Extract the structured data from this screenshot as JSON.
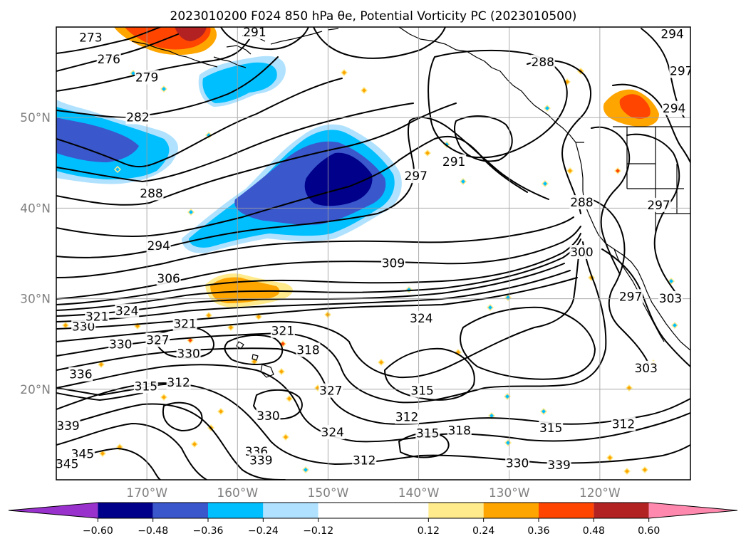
{
  "chart_data": {
    "type": "contour-map",
    "title": "2023010200 F024 850 hPa θe, Potential Vorticity PC (2023010500)",
    "map": {
      "lon_range": [
        -180,
        -110
      ],
      "lat_range": [
        10,
        60
      ],
      "lat_ticks": [
        {
          "value": 20,
          "label": "20°N"
        },
        {
          "value": 30,
          "label": "30°N"
        },
        {
          "value": 40,
          "label": "40°N"
        },
        {
          "value": 50,
          "label": "50°N"
        }
      ],
      "lon_ticks": [
        {
          "value": -170,
          "label": "170°W"
        },
        {
          "value": -160,
          "label": "160°W"
        },
        {
          "value": -150,
          "label": "150°W"
        },
        {
          "value": -140,
          "label": "140°W"
        },
        {
          "value": -130,
          "label": "130°W"
        },
        {
          "value": -120,
          "label": "120°W"
        }
      ],
      "grid": true
    },
    "colorbar": {
      "bounds": [
        -0.72,
        -0.6,
        -0.48,
        -0.36,
        -0.24,
        -0.12,
        0.12,
        0.24,
        0.36,
        0.48,
        0.6,
        0.72
      ],
      "colors": [
        "#9932cc",
        "#00008b",
        "#3a57cc",
        "#00bfff",
        "#b0e2ff",
        "#ffffff",
        "#ffeb8c",
        "#ffa500",
        "#ff4500",
        "#b22222",
        "#ff89ae"
      ],
      "extend": "both",
      "tick_values": [
        -0.6,
        -0.48,
        -0.36,
        -0.24,
        -0.12,
        0.12,
        0.24,
        0.36,
        0.48,
        0.6
      ],
      "tick_labels": [
        "−0.60",
        "−0.48",
        "−0.36",
        "−0.24",
        "−0.12",
        "0.12",
        "0.24",
        "0.36",
        "0.48",
        "0.60"
      ]
    },
    "contour_labels": [
      {
        "text": "273",
        "lon": -176.2,
        "lat": 58.7
      },
      {
        "text": "276",
        "lon": -174.2,
        "lat": 56.3
      },
      {
        "text": "279",
        "lon": -170.0,
        "lat": 54.3
      },
      {
        "text": "282",
        "lon": -171.0,
        "lat": 49.9
      },
      {
        "text": "288",
        "lon": -169.5,
        "lat": 41.5
      },
      {
        "text": "291",
        "lon": -158.1,
        "lat": 59.3
      },
      {
        "text": "294",
        "lon": -168.7,
        "lat": 35.7
      },
      {
        "text": "306",
        "lon": -167.6,
        "lat": 32.1
      },
      {
        "text": "330",
        "lon": -177.0,
        "lat": 26.8
      },
      {
        "text": "321",
        "lon": -175.5,
        "lat": 27.9
      },
      {
        "text": "324",
        "lon": -172.2,
        "lat": 28.5
      },
      {
        "text": "330",
        "lon": -172.9,
        "lat": 24.8
      },
      {
        "text": "327",
        "lon": -168.8,
        "lat": 25.3
      },
      {
        "text": "321",
        "lon": -165.8,
        "lat": 27.1
      },
      {
        "text": "330",
        "lon": -165.4,
        "lat": 23.8
      },
      {
        "text": "336",
        "lon": -177.3,
        "lat": 21.5
      },
      {
        "text": "315",
        "lon": -170.1,
        "lat": 20.2
      },
      {
        "text": "312",
        "lon": -166.5,
        "lat": 20.6
      },
      {
        "text": "321",
        "lon": -155.0,
        "lat": 26.3
      },
      {
        "text": "318",
        "lon": -152.2,
        "lat": 24.2
      },
      {
        "text": "327",
        "lon": -149.7,
        "lat": 19.7
      },
      {
        "text": "330",
        "lon": -156.6,
        "lat": 16.9
      },
      {
        "text": "324",
        "lon": -149.5,
        "lat": 15.1
      },
      {
        "text": "336",
        "lon": -157.9,
        "lat": 13.0
      },
      {
        "text": "339",
        "lon": -157.4,
        "lat": 12.0
      },
      {
        "text": "339",
        "lon": -178.7,
        "lat": 15.8
      },
      {
        "text": "345",
        "lon": -177.1,
        "lat": 12.7
      },
      {
        "text": "345",
        "lon": -178.8,
        "lat": 11.6
      },
      {
        "text": "309",
        "lon": -142.8,
        "lat": 33.8
      },
      {
        "text": "324",
        "lon": -139.7,
        "lat": 27.7
      },
      {
        "text": "315",
        "lon": -139.6,
        "lat": 19.7
      },
      {
        "text": "312",
        "lon": -141.3,
        "lat": 16.8
      },
      {
        "text": "315",
        "lon": -139.0,
        "lat": 15.0
      },
      {
        "text": "318",
        "lon": -135.5,
        "lat": 15.3
      },
      {
        "text": "315",
        "lon": -125.4,
        "lat": 15.6
      },
      {
        "text": "312",
        "lon": -117.4,
        "lat": 16.0
      },
      {
        "text": "312",
        "lon": -146.0,
        "lat": 12.0
      },
      {
        "text": "330",
        "lon": -129.1,
        "lat": 11.7
      },
      {
        "text": "339",
        "lon": -124.5,
        "lat": 11.5
      },
      {
        "text": "303",
        "lon": -114.9,
        "lat": 22.2
      },
      {
        "text": "300",
        "lon": -122.0,
        "lat": 35.0
      },
      {
        "text": "297",
        "lon": -140.3,
        "lat": 43.4
      },
      {
        "text": "291",
        "lon": -136.1,
        "lat": 45.0
      },
      {
        "text": "288",
        "lon": -126.3,
        "lat": 56.0
      },
      {
        "text": "297",
        "lon": -111.0,
        "lat": 55.0
      },
      {
        "text": "294",
        "lon": -111.8,
        "lat": 50.9
      },
      {
        "text": "294",
        "lon": -112.0,
        "lat": 59.1
      },
      {
        "text": "288",
        "lon": -122.0,
        "lat": 40.5
      },
      {
        "text": "297",
        "lon": -113.5,
        "lat": 40.2
      },
      {
        "text": "297",
        "lon": -116.6,
        "lat": 30.1
      },
      {
        "text": "303",
        "lon": -112.2,
        "lat": 29.9
      }
    ]
  }
}
